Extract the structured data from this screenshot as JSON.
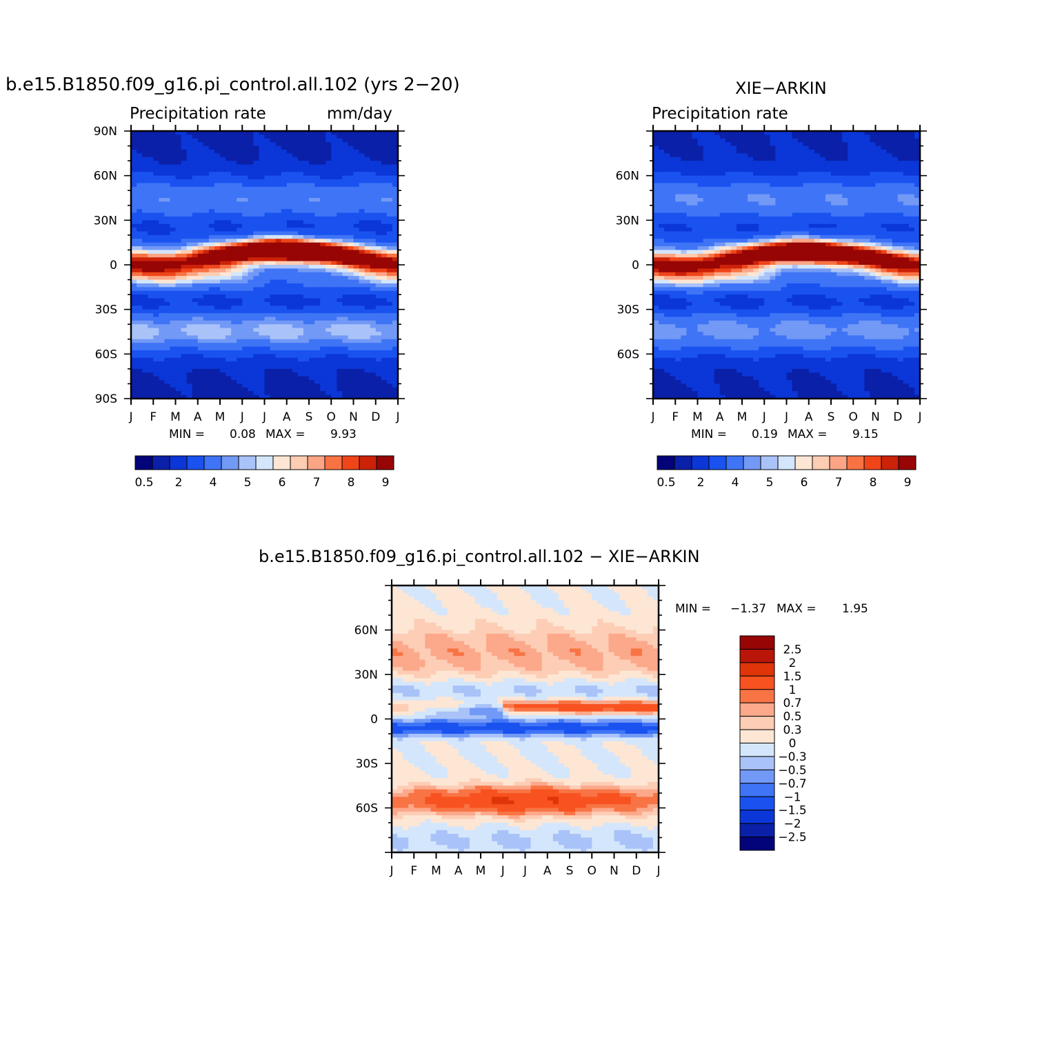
{
  "months": [
    "J",
    "F",
    "M",
    "A",
    "M",
    "J",
    "J",
    "A",
    "S",
    "O",
    "N",
    "D",
    "J"
  ],
  "panels": {
    "model": {
      "title": "b.e15.B1850.f09_g16.pi_control.all.102 (yrs 2−20)",
      "subtitle_left": "Precipitation rate",
      "subtitle_right": "mm/day",
      "lat_labels": [
        "90N",
        "60N",
        "30N",
        "0",
        "30S",
        "60S",
        "90S"
      ],
      "min_label": "MIN =",
      "min_value": "0.08",
      "max_label": "MAX =",
      "max_value": "9.93"
    },
    "obs": {
      "title": "XIE−ARKIN",
      "subtitle_left": "Precipitation rate",
      "lat_labels": [
        "60N",
        "30N",
        "0",
        "30S",
        "60S"
      ],
      "min_label": "MIN =",
      "min_value": "0.19",
      "max_label": "MAX =",
      "max_value": "9.15"
    },
    "diff": {
      "title": "b.e15.B1850.f09_g16.pi_control.all.102  −  XIE−ARKIN",
      "lat_labels": [
        "60N",
        "30N",
        "0",
        "30S",
        "60S"
      ],
      "min_label": "MIN =",
      "min_value": "−1.37",
      "max_label": "MAX =",
      "max_value": "1.95"
    }
  },
  "colorbars": {
    "precip": {
      "labels": [
        "0.5",
        "2",
        "4",
        "5",
        "6",
        "7",
        "8",
        "9"
      ],
      "colors": [
        "#03037a",
        "#0a20a8",
        "#0b36d8",
        "#1a52f0",
        "#3f74f6",
        "#7299f6",
        "#a9c2f8",
        "#d4e6fb",
        "#fde6d4",
        "#fccdb3",
        "#fba585",
        "#f87344",
        "#ef4519",
        "#cc2208",
        "#970505"
      ]
    },
    "diff": {
      "labels": [
        "2.5",
        "2",
        "1.5",
        "1",
        "0.7",
        "0.5",
        "0.3",
        "0",
        "−0.3",
        "−0.5",
        "−0.7",
        "−1",
        "−1.5",
        "−2",
        "−2.5"
      ],
      "colors": [
        "#970505",
        "#b91508",
        "#df3509",
        "#f85220",
        "#f87444",
        "#fca88a",
        "#fdcdb5",
        "#fde6d4",
        "#d4e6fb",
        "#a9c2f8",
        "#7299f6",
        "#3f74f6",
        "#1a52f0",
        "#0b36d8",
        "#0a20a8",
        "#03037a"
      ]
    }
  },
  "chart_data": [
    {
      "type": "heatmap",
      "title": "b.e15.B1850.f09_g16.pi_control.all.102 (yrs 2-20)",
      "subtitle": "Precipitation rate",
      "units": "mm/day",
      "x": "month (Jan to Jan)",
      "y": "latitude",
      "ylim": [
        -90,
        90
      ],
      "min": 0.08,
      "max": 9.93,
      "features": {
        "itcz_peak_mm_day": 9.9,
        "itcz_peak_month": "Aug",
        "itcz_lat_jan": 3,
        "itcz_lat_aug": 10,
        "southern_storm_track_mm_day": 3.5,
        "polar_mm_day": 0.5
      }
    },
    {
      "type": "heatmap",
      "title": "XIE-ARKIN",
      "subtitle": "Precipitation rate",
      "x": "month (Jan to Jan)",
      "y": "latitude",
      "ylim": [
        -90,
        90
      ],
      "min": 0.19,
      "max": 9.15,
      "features": {
        "itcz_peak_mm_day": 9.1,
        "itcz_peak_month": "Aug",
        "itcz_lat_jan": 2,
        "itcz_lat_aug": 9,
        "southern_storm_track_mm_day": 3.0,
        "polar_mm_day": 0.6
      }
    },
    {
      "type": "heatmap",
      "title": "b.e15.B1850.f09_g16.pi_control.all.102 - XIE-ARKIN",
      "x": "month (Jan to Jan)",
      "y": "latitude",
      "ylim": [
        -90,
        90
      ],
      "min": -1.37,
      "max": 1.95,
      "features": {
        "southern_midlat_bias_mm_day": 1.5,
        "southern_midlat_lat": -55,
        "equatorial_dry_bias_mm_day": -1.2,
        "north_midlat_bias_mm_day": 0.6
      }
    }
  ]
}
